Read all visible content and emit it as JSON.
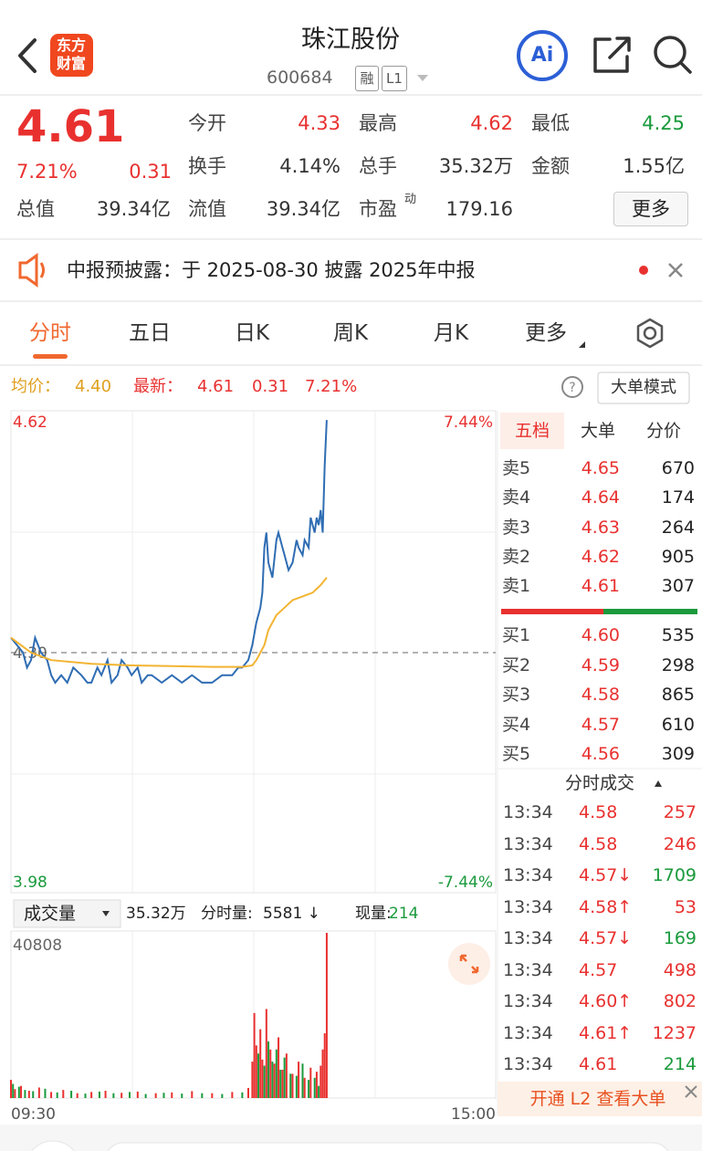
{
  "header": {
    "logo": [
      "东方",
      "财富"
    ],
    "title": "珠江股份",
    "code": "600684",
    "badges": [
      "融",
      "L1"
    ],
    "ai": "Ai"
  },
  "quote": {
    "price": "4.61",
    "change_pct": "7.21%",
    "change": "0.31",
    "fields": [
      [
        {
          "label": "今开",
          "value": "4.33",
          "color": "#e8312f"
        },
        {
          "label": "最高",
          "value": "4.62",
          "color": "#e8312f"
        },
        {
          "label": "最低",
          "value": "4.25",
          "color": "#1a9a3c"
        }
      ],
      [
        {
          "label": "换手",
          "value": "4.14%"
        },
        {
          "label": "总手",
          "value": "35.32万"
        },
        {
          "label": "金额",
          "value": "1.55亿"
        }
      ],
      [
        {
          "label": "总值",
          "value": "39.34亿"
        },
        {
          "label": "流值",
          "value": "39.34亿"
        },
        {
          "label": "市盈",
          "sup": "动",
          "value": "179.16"
        }
      ]
    ],
    "more": "更多"
  },
  "notice": {
    "text": "中报预披露：于 2025-08-30 披露 2025年中报"
  },
  "tabs": [
    "分时",
    "五日",
    "日K",
    "周K",
    "月K",
    "更多"
  ],
  "info": {
    "avg_label": "均价：",
    "avg": "4.40",
    "last_label": "最新：",
    "last": "4.61",
    "change": "0.31",
    "change_pct": "7.21%",
    "mode": "大单模式"
  },
  "volume_header": {
    "label": "成交量",
    "total": "35.32万",
    "minute_label": "分时量:",
    "minute": "5581 ↓",
    "now_label": "现量:",
    "now": "214"
  },
  "book": {
    "tabs": [
      "五档",
      "大单",
      "分价"
    ],
    "asks": [
      {
        "label": "卖5",
        "price": "4.65",
        "volume": "670"
      },
      {
        "label": "卖4",
        "price": "4.64",
        "volume": "174"
      },
      {
        "label": "卖3",
        "price": "4.63",
        "volume": "264"
      },
      {
        "label": "卖2",
        "price": "4.62",
        "volume": "905"
      },
      {
        "label": "卖1",
        "price": "4.61",
        "volume": "307"
      }
    ],
    "bids": [
      {
        "label": "买1",
        "price": "4.60",
        "volume": "535"
      },
      {
        "label": "买2",
        "price": "4.59",
        "volume": "298"
      },
      {
        "label": "买3",
        "price": "4.58",
        "volume": "865"
      },
      {
        "label": "买4",
        "price": "4.57",
        "volume": "610"
      },
      {
        "label": "买5",
        "price": "4.56",
        "volume": "309"
      }
    ]
  },
  "trades": {
    "title": "分时成交",
    "rows": [
      {
        "time": "13:34",
        "price": "4.58",
        "volume": "257",
        "volume_color": "#e8312f"
      },
      {
        "time": "13:34",
        "price": "4.58",
        "volume": "246",
        "volume_color": "#e8312f"
      },
      {
        "time": "13:34",
        "price": "4.57↓",
        "volume": "1709",
        "volume_color": "#1a9a3c"
      },
      {
        "time": "13:34",
        "price": "4.58↑",
        "volume": "53",
        "volume_color": "#e8312f"
      },
      {
        "time": "13:34",
        "price": "4.57↓",
        "volume": "169",
        "volume_color": "#1a9a3c"
      },
      {
        "time": "13:34",
        "price": "4.57",
        "volume": "498",
        "volume_color": "#e8312f"
      },
      {
        "time": "13:34",
        "price": "4.60↑",
        "volume": "802",
        "volume_color": "#e8312f"
      },
      {
        "time": "13:34",
        "price": "4.61↑",
        "volume": "1237",
        "volume_color": "#e8312f"
      },
      {
        "time": "13:34",
        "price": "4.61",
        "volume": "214",
        "volume_color": "#1a9a3c"
      }
    ]
  },
  "banner": "开通 L2 查看大单",
  "chart_data": [
    {
      "type": "line",
      "xlim": [
        0,
        241
      ],
      "ylim": [
        3.98,
        4.62
      ],
      "yticks": [
        4.62,
        {
          "value": 4.3,
          "label": "4.30"
        },
        3.98
      ],
      "y2lim": [
        -7.44,
        7.44
      ],
      "y2ticks": [
        {
          "value": 7.44,
          "label": "7.44%"
        },
        {
          "value": -7.44,
          "label": "-7.44%"
        }
      ],
      "series": [
        {
          "color": "#2f6db3",
          "x": [
            0,
            3,
            6,
            8,
            10,
            12,
            15,
            18,
            20,
            22,
            25,
            28,
            31,
            35,
            38,
            40,
            43,
            45,
            48,
            50,
            53,
            55,
            58,
            60,
            63,
            65,
            68,
            70,
            75,
            80,
            85,
            90,
            95,
            100,
            105,
            110,
            113,
            115,
            118,
            120,
            122,
            124,
            125,
            126,
            127,
            128,
            130,
            132,
            133,
            135,
            136,
            138,
            140,
            142,
            143,
            145,
            146,
            148,
            149,
            150,
            151,
            152,
            153,
            154,
            155,
            156,
            157
          ],
          "values": [
            4.32,
            4.31,
            4.3,
            4.28,
            4.29,
            4.32,
            4.3,
            4.29,
            4.27,
            4.26,
            4.27,
            4.26,
            4.28,
            4.27,
            4.26,
            4.26,
            4.28,
            4.27,
            4.29,
            4.26,
            4.27,
            4.29,
            4.28,
            4.27,
            4.28,
            4.26,
            4.27,
            4.27,
            4.26,
            4.27,
            4.26,
            4.27,
            4.26,
            4.26,
            4.27,
            4.27,
            4.28,
            4.28,
            4.29,
            4.31,
            4.34,
            4.36,
            4.38,
            4.44,
            4.46,
            4.42,
            4.4,
            4.45,
            4.46,
            4.44,
            4.43,
            4.41,
            4.42,
            4.45,
            4.44,
            4.43,
            4.45,
            4.44,
            4.48,
            4.47,
            4.46,
            4.48,
            4.47,
            4.49,
            4.46,
            4.55,
            4.61
          ]
        },
        {
          "color": "#f2b431",
          "x": [
            0,
            5,
            10,
            20,
            40,
            60,
            80,
            100,
            115,
            120,
            122,
            124,
            126,
            128,
            132,
            136,
            140,
            145,
            150,
            154,
            157
          ],
          "values": [
            4.32,
            4.31,
            4.3,
            4.29,
            4.285,
            4.283,
            4.282,
            4.281,
            4.281,
            4.283,
            4.29,
            4.3,
            4.31,
            4.33,
            4.35,
            4.36,
            4.37,
            4.375,
            4.38,
            4.39,
            4.4
          ]
        }
      ]
    },
    {
      "type": "bar",
      "xlim": [
        0,
        241
      ],
      "xticks": [
        {
          "value": 0,
          "label": "09:30"
        },
        {
          "value": 241,
          "label": "15:00"
        }
      ],
      "ylim": [
        0,
        40808
      ],
      "yticks": [
        40808
      ],
      "series": [
        {
          "color": "#e8312f",
          "x": [
            0,
            2,
            5,
            9,
            14,
            20,
            26,
            33,
            40,
            47,
            55,
            63,
            72,
            80,
            90,
            100,
            110,
            118,
            120,
            121,
            122,
            124,
            125,
            127,
            129,
            131,
            133,
            135,
            137,
            140,
            143,
            146,
            149,
            152,
            154,
            155,
            156,
            157
          ],
          "values": [
            4500,
            2200,
            3000,
            1800,
            2600,
            1500,
            2000,
            1200,
            1500,
            1800,
            1300,
            1600,
            1200,
            1400,
            1700,
            1200,
            1500,
            2500,
            9000,
            21000,
            13000,
            17000,
            9500,
            22000,
            12000,
            8500,
            15000,
            7000,
            11000,
            6000,
            9000,
            5000,
            7500,
            6500,
            8000,
            12000,
            16000,
            40808
          ]
        },
        {
          "color": "#1a9a3c",
          "x": [
            1,
            4,
            7,
            11,
            17,
            23,
            30,
            37,
            44,
            51,
            59,
            67,
            76,
            85,
            95,
            105,
            115,
            123,
            126,
            128,
            130,
            132,
            134,
            136,
            139,
            142,
            145,
            148,
            151,
            153
          ],
          "values": [
            3500,
            2800,
            2000,
            1700,
            2300,
            1400,
            1800,
            1100,
            1600,
            1200,
            1500,
            1000,
            1300,
            1100,
            1200,
            1000,
            1400,
            11000,
            8000,
            14000,
            9000,
            12000,
            7000,
            10000,
            6000,
            5500,
            8500,
            4500,
            5000,
            3000
          ]
        }
      ]
    }
  ]
}
